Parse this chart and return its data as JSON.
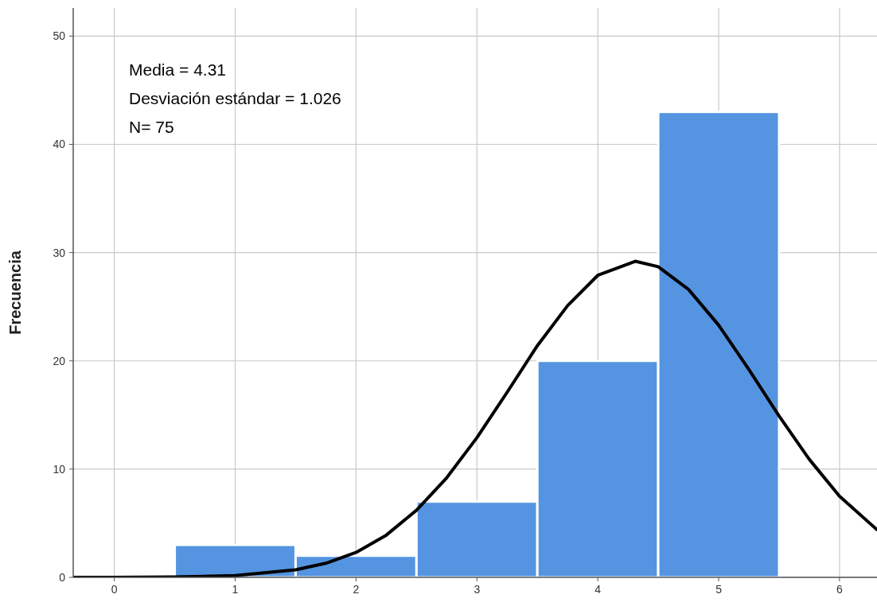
{
  "chart_data": {
    "type": "histogram",
    "ylabel": "Frecuencia",
    "annotations": [
      "Media = 4.31",
      "Desviación estándar = 1.026",
      "N= 75"
    ],
    "bins": [
      0.5,
      1.5,
      2.5,
      3.5,
      4.5,
      5.5
    ],
    "values": [
      3,
      2,
      7,
      20,
      43
    ],
    "color": "#5594e0",
    "series": [
      {
        "type": "line",
        "color": "#000000",
        "x": [
          -0.34,
          0,
          0.5,
          1,
          1.5,
          1.75,
          2,
          2.25,
          2.5,
          2.75,
          3,
          3.25,
          3.5,
          3.75,
          4,
          4.31,
          4.5,
          4.75,
          5,
          5.25,
          5.5,
          5.75,
          6,
          6.31
        ],
        "values": [
          0,
          0,
          0.03,
          0.16,
          0.7,
          1.3,
          2.3,
          3.9,
          6.2,
          9.2,
          12.9,
          17.1,
          21.4,
          25.1,
          27.9,
          29.2,
          28.7,
          26.6,
          23.3,
          19.2,
          14.9,
          10.9,
          7.5,
          4.4
        ]
      }
    ],
    "xlim": [
      -0.34,
      6.31
    ],
    "ylim": [
      0,
      52.6
    ],
    "xticks": [
      0,
      1,
      2,
      3,
      4,
      5,
      6
    ],
    "yticks": [
      0,
      10,
      20,
      30,
      40,
      50
    ],
    "grid": true
  }
}
